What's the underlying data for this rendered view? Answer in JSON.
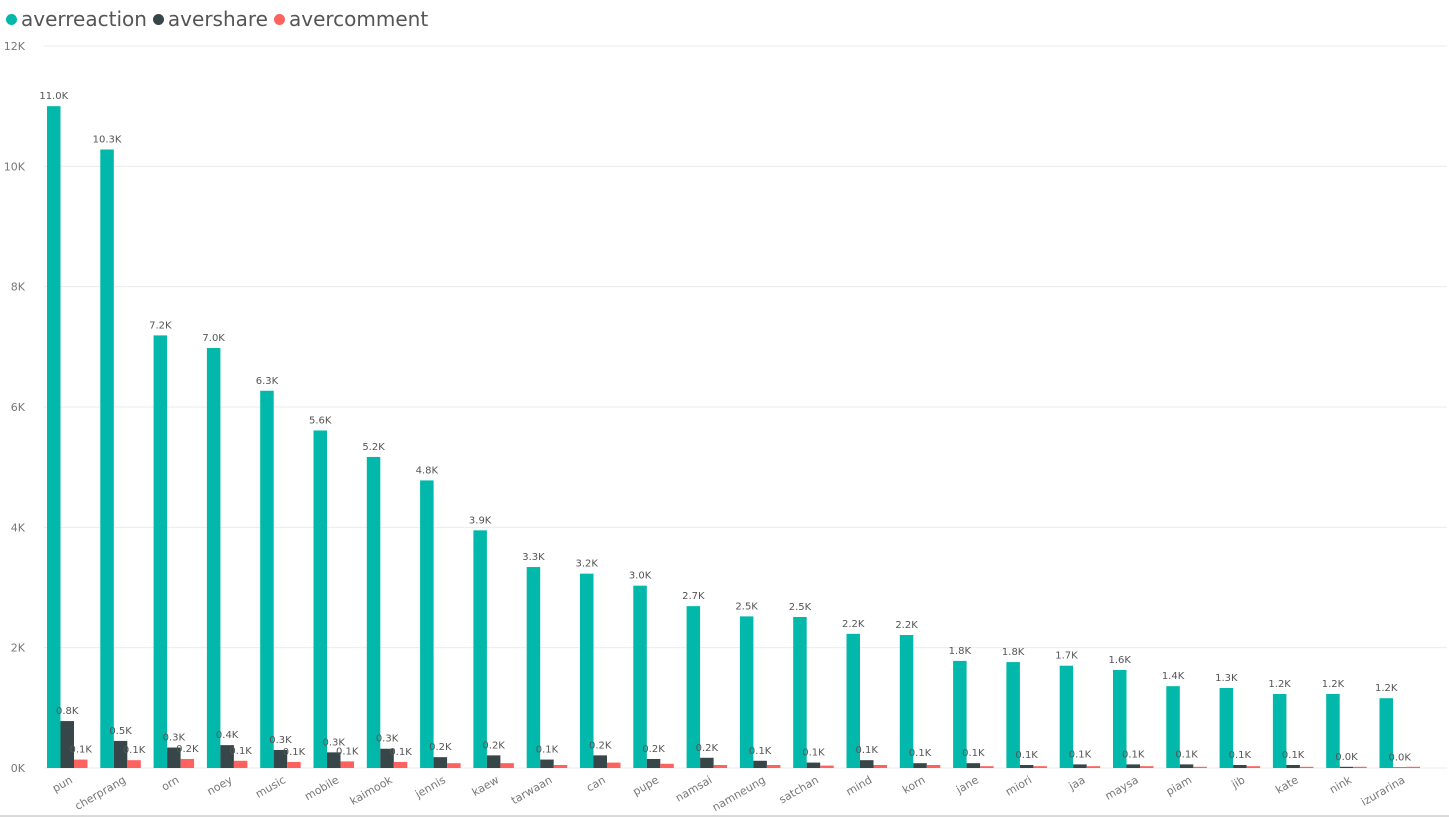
{
  "colors": {
    "averreaction": "#01B8AA",
    "avershare": "#374649",
    "avercomment": "#FD625E"
  },
  "chart_data": {
    "type": "bar",
    "title": "",
    "xlabel": "",
    "ylabel": "",
    "ylim": [
      0,
      12000
    ],
    "yticks": [
      0,
      2000,
      4000,
      6000,
      8000,
      10000,
      12000
    ],
    "ytick_labels": [
      "0K",
      "2K",
      "4K",
      "6K",
      "8K",
      "10K",
      "12K"
    ],
    "grid": true,
    "legend_position": "top-left",
    "categories": [
      "pun",
      "cherprang",
      "orn",
      "noey",
      "music",
      "mobile",
      "kaimook",
      "jennis",
      "kaew",
      "tarwaan",
      "can",
      "pupe",
      "namsai",
      "namneung",
      "satchan",
      "mind",
      "korn",
      "jane",
      "miori",
      "jaa",
      "maysa",
      "piam",
      "jib",
      "kate",
      "nink",
      "izurarina"
    ],
    "series": [
      {
        "name": "averreaction",
        "values": [
          11000,
          10280,
          7190,
          6980,
          6270,
          5610,
          5170,
          4780,
          3950,
          3340,
          3230,
          3030,
          2690,
          2520,
          2510,
          2230,
          2210,
          1780,
          1760,
          1700,
          1630,
          1360,
          1330,
          1230,
          1230,
          1160
        ],
        "labels": [
          "11.0K",
          "10.3K",
          "7.2K",
          "7.0K",
          "6.3K",
          "5.6K",
          "5.2K",
          "4.8K",
          "3.9K",
          "3.3K",
          "3.2K",
          "3.0K",
          "2.7K",
          "2.5K",
          "2.5K",
          "2.2K",
          "2.2K",
          "1.8K",
          "1.8K",
          "1.7K",
          "1.6K",
          "1.4K",
          "1.3K",
          "1.2K",
          "1.2K",
          "1.2K"
        ]
      },
      {
        "name": "avershare",
        "values": [
          780,
          450,
          340,
          380,
          300,
          260,
          320,
          180,
          210,
          140,
          210,
          150,
          170,
          120,
          90,
          130,
          80,
          80,
          50,
          60,
          60,
          60,
          50,
          50,
          20,
          10
        ],
        "labels": [
          "0.8K",
          "0.5K",
          "0.3K",
          "0.4K",
          "0.3K",
          "0.3K",
          "0.3K",
          "0.2K",
          "0.2K",
          "0.1K",
          "0.2K",
          "0.2K",
          "0.2K",
          "0.1K",
          "0.1K",
          "0.1K",
          "0.1K",
          "0.1K",
          "0.1K",
          "0.1K",
          "0.1K",
          "0.1K",
          "0.1K",
          "0.1K",
          "0.0K",
          "0.0K"
        ]
      },
      {
        "name": "avercomment",
        "values": [
          140,
          130,
          150,
          120,
          100,
          110,
          100,
          80,
          80,
          50,
          90,
          70,
          50,
          50,
          40,
          50,
          50,
          30,
          30,
          30,
          30,
          20,
          30,
          20,
          20,
          20
        ],
        "labels": [
          "0.1K",
          "0.1K",
          "0.2K",
          "0.1K",
          "0.1K",
          "0.1K",
          "0.1K",
          "",
          "",
          "",
          "",
          "",
          "",
          "",
          "",
          "",
          "",
          "",
          "",
          "",
          "",
          "",
          "",
          "",
          "",
          ""
        ]
      }
    ]
  }
}
